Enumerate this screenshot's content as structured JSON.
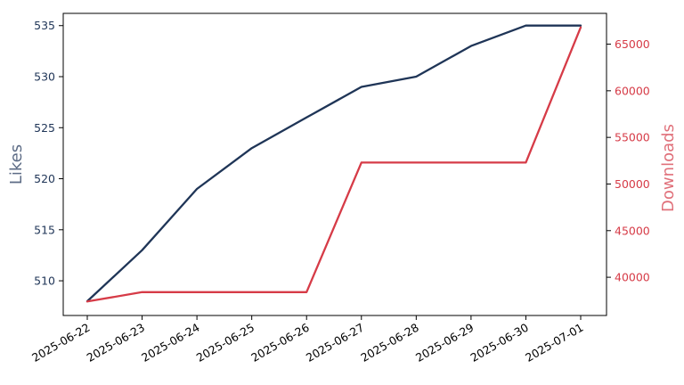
{
  "chart_data": {
    "type": "line",
    "x": [
      "2025-06-22",
      "2025-06-23",
      "2025-06-24",
      "2025-06-25",
      "2025-06-26",
      "2025-06-27",
      "2025-06-28",
      "2025-06-29",
      "2025-06-30",
      "2025-07-01"
    ],
    "series": [
      {
        "name": "Likes",
        "axis": "left",
        "color": "#1f3557",
        "values": [
          508,
          513,
          519,
          523,
          526,
          529,
          530,
          533,
          535,
          535
        ]
      },
      {
        "name": "Downloads",
        "axis": "right",
        "color": "#d63b47",
        "values": [
          37400,
          38400,
          38400,
          38400,
          38400,
          52300,
          52300,
          52300,
          52300,
          66800
        ]
      }
    ],
    "ylabel_left": "Likes",
    "ylabel_right": "Downloads",
    "ylim_left": [
      506.6,
      536.2
    ],
    "ylim_right": [
      35900,
      68300
    ],
    "yticks_left": [
      510,
      515,
      520,
      525,
      530,
      535
    ],
    "yticks_right": [
      40000,
      45000,
      50000,
      55000,
      60000,
      65000
    ],
    "left_label_color": "#5c6b85",
    "right_label_color": "#e0707a",
    "grid": false,
    "title": ""
  }
}
